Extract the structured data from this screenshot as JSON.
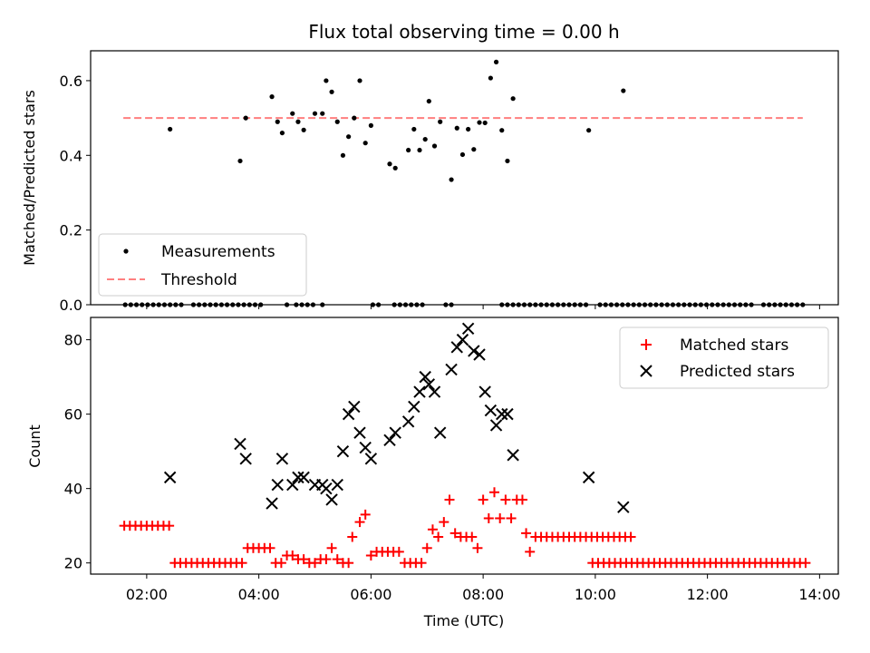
{
  "chart_data": [
    {
      "type": "scatter",
      "title": "Flux total observing time = 0.00 h",
      "xlabel": "",
      "ylabel": "Matched/Predicted stars",
      "xlim": [
        "01:00",
        "14:20"
      ],
      "ylim": [
        0,
        0.68
      ],
      "y_ticks": [
        "0.0",
        "0.2",
        "0.4",
        "0.6"
      ],
      "legend": {
        "placement": "lower-left",
        "entries": [
          "Measurements",
          "Threshold"
        ]
      },
      "threshold": {
        "name": "Threshold",
        "y": 0.5,
        "x_range": [
          "01:35",
          "13:42"
        ],
        "color": "#ff7f7f"
      },
      "series": [
        {
          "name": "Measurements",
          "color": "#000000",
          "points": [
            [
              "02:25",
              0.47
            ],
            [
              "03:40",
              0.385
            ],
            [
              "03:46",
              0.5
            ],
            [
              "04:14",
              0.557
            ],
            [
              "04:20",
              0.49
            ],
            [
              "04:25",
              0.46
            ],
            [
              "04:36",
              0.512
            ],
            [
              "04:42",
              0.49
            ],
            [
              "04:48",
              0.468
            ],
            [
              "05:00",
              0.512
            ],
            [
              "05:08",
              0.512
            ],
            [
              "05:12",
              0.6
            ],
            [
              "05:18",
              0.57
            ],
            [
              "05:24",
              0.49
            ],
            [
              "05:30",
              0.4
            ],
            [
              "05:36",
              0.45
            ],
            [
              "05:42",
              0.5
            ],
            [
              "05:48",
              0.6
            ],
            [
              "05:54",
              0.433
            ],
            [
              "06:00",
              0.48
            ],
            [
              "06:20",
              0.377
            ],
            [
              "06:26",
              0.366
            ],
            [
              "06:40",
              0.414
            ],
            [
              "06:46",
              0.47
            ],
            [
              "06:52",
              0.414
            ],
            [
              "06:58",
              0.443
            ],
            [
              "07:02",
              0.545
            ],
            [
              "07:08",
              0.425
            ],
            [
              "07:14",
              0.49
            ],
            [
              "07:26",
              0.335
            ],
            [
              "07:32",
              0.473
            ],
            [
              "07:38",
              0.402
            ],
            [
              "07:44",
              0.47
            ],
            [
              "07:50",
              0.416
            ],
            [
              "07:56",
              0.488
            ],
            [
              "08:02",
              0.487
            ],
            [
              "08:08",
              0.607
            ],
            [
              "08:14",
              0.65
            ],
            [
              "08:20",
              0.467
            ],
            [
              "08:26",
              0.385
            ],
            [
              "08:32",
              0.552
            ],
            [
              "09:53",
              0.467
            ],
            [
              "10:30",
              0.573
            ]
          ],
          "zero_points_ranges": [
            [
              "01:37",
              "02:40"
            ],
            [
              "02:50",
              "04:05"
            ],
            [
              "04:30",
              "04:30"
            ],
            [
              "04:40",
              "05:02"
            ],
            [
              "05:08",
              "05:10"
            ],
            [
              "06:02",
              "06:10"
            ],
            [
              "06:25",
              "07:00"
            ],
            [
              "07:20",
              "07:30"
            ],
            [
              "08:20",
              "09:55"
            ],
            [
              "10:05",
              "12:50"
            ],
            [
              "13:00",
              "13:42"
            ]
          ]
        }
      ]
    },
    {
      "type": "scatter",
      "title": "",
      "xlabel": "Time (UTC)",
      "ylabel": "Count",
      "xlim": [
        "01:00",
        "14:20"
      ],
      "ylim": [
        17,
        86
      ],
      "y_ticks": [
        "20",
        "40",
        "60",
        "80"
      ],
      "x_ticks": [
        "02:00",
        "04:00",
        "06:00",
        "08:00",
        "10:00",
        "12:00",
        "14:00"
      ],
      "legend": {
        "placement": "top-right",
        "entries": [
          "Matched stars",
          "Predicted stars"
        ]
      },
      "series": [
        {
          "name": "Matched stars",
          "color": "#ff0000",
          "marker": "+",
          "points": [
            [
              "01:36",
              30
            ],
            [
              "01:42",
              30
            ],
            [
              "01:48",
              30
            ],
            [
              "01:54",
              30
            ],
            [
              "02:00",
              30
            ],
            [
              "02:06",
              30
            ],
            [
              "02:12",
              30
            ],
            [
              "02:18",
              30
            ],
            [
              "02:24",
              30
            ],
            [
              "02:30",
              20
            ],
            [
              "02:36",
              20
            ],
            [
              "02:42",
              20
            ],
            [
              "02:48",
              20
            ],
            [
              "02:54",
              20
            ],
            [
              "03:00",
              20
            ],
            [
              "03:06",
              20
            ],
            [
              "03:12",
              20
            ],
            [
              "03:18",
              20
            ],
            [
              "03:24",
              20
            ],
            [
              "03:30",
              20
            ],
            [
              "03:36",
              20
            ],
            [
              "03:42",
              20
            ],
            [
              "03:48",
              24
            ],
            [
              "03:54",
              24
            ],
            [
              "04:00",
              24
            ],
            [
              "04:06",
              24
            ],
            [
              "04:12",
              24
            ],
            [
              "04:18",
              20
            ],
            [
              "04:24",
              20
            ],
            [
              "04:30",
              22
            ],
            [
              "04:36",
              22
            ],
            [
              "04:42",
              21
            ],
            [
              "04:48",
              21
            ],
            [
              "04:54",
              20
            ],
            [
              "05:00",
              20
            ],
            [
              "05:06",
              21
            ],
            [
              "05:12",
              21
            ],
            [
              "05:18",
              24
            ],
            [
              "05:24",
              21
            ],
            [
              "05:30",
              20
            ],
            [
              "05:36",
              20
            ],
            [
              "05:40",
              27
            ],
            [
              "05:48",
              31
            ],
            [
              "05:54",
              33
            ],
            [
              "06:00",
              22
            ],
            [
              "06:06",
              23
            ],
            [
              "06:12",
              23
            ],
            [
              "06:18",
              23
            ],
            [
              "06:24",
              23
            ],
            [
              "06:30",
              23
            ],
            [
              "06:36",
              20
            ],
            [
              "06:42",
              20
            ],
            [
              "06:48",
              20
            ],
            [
              "06:54",
              20
            ],
            [
              "07:00",
              24
            ],
            [
              "07:06",
              29
            ],
            [
              "07:12",
              27
            ],
            [
              "07:18",
              31
            ],
            [
              "07:24",
              37
            ],
            [
              "07:30",
              28
            ],
            [
              "07:36",
              27
            ],
            [
              "07:42",
              27
            ],
            [
              "07:48",
              27
            ],
            [
              "07:54",
              24
            ],
            [
              "08:00",
              37
            ],
            [
              "08:06",
              32
            ],
            [
              "08:12",
              39
            ],
            [
              "08:18",
              32
            ],
            [
              "08:24",
              37
            ],
            [
              "08:30",
              32
            ],
            [
              "08:36",
              37
            ],
            [
              "08:42",
              37
            ],
            [
              "08:46",
              28
            ],
            [
              "08:50",
              23
            ],
            [
              "08:56",
              27
            ],
            [
              "09:02",
              27
            ],
            [
              "09:08",
              27
            ],
            [
              "09:14",
              27
            ],
            [
              "09:20",
              27
            ],
            [
              "09:26",
              27
            ],
            [
              "09:32",
              27
            ],
            [
              "09:38",
              27
            ],
            [
              "09:44",
              27
            ],
            [
              "09:50",
              27
            ],
            [
              "09:56",
              27
            ],
            [
              "10:02",
              27
            ],
            [
              "10:08",
              27
            ],
            [
              "10:14",
              27
            ],
            [
              "10:20",
              27
            ],
            [
              "10:26",
              27
            ],
            [
              "10:32",
              27
            ],
            [
              "10:38",
              27
            ],
            [
              "09:57",
              20
            ],
            [
              "10:03",
              20
            ],
            [
              "10:09",
              20
            ],
            [
              "10:15",
              20
            ],
            [
              "10:21",
              20
            ],
            [
              "10:27",
              20
            ],
            [
              "10:33",
              20
            ],
            [
              "10:39",
              20
            ],
            [
              "10:45",
              20
            ],
            [
              "10:51",
              20
            ],
            [
              "10:57",
              20
            ],
            [
              "11:03",
              20
            ],
            [
              "11:09",
              20
            ],
            [
              "11:15",
              20
            ],
            [
              "11:21",
              20
            ],
            [
              "11:27",
              20
            ],
            [
              "11:33",
              20
            ],
            [
              "11:39",
              20
            ],
            [
              "11:45",
              20
            ],
            [
              "11:51",
              20
            ],
            [
              "11:57",
              20
            ],
            [
              "12:03",
              20
            ],
            [
              "12:09",
              20
            ],
            [
              "12:15",
              20
            ],
            [
              "12:21",
              20
            ],
            [
              "12:27",
              20
            ],
            [
              "12:33",
              20
            ],
            [
              "12:39",
              20
            ],
            [
              "12:45",
              20
            ],
            [
              "12:51",
              20
            ],
            [
              "12:57",
              20
            ],
            [
              "13:03",
              20
            ],
            [
              "13:09",
              20
            ],
            [
              "13:15",
              20
            ],
            [
              "13:21",
              20
            ],
            [
              "13:27",
              20
            ],
            [
              "13:33",
              20
            ],
            [
              "13:39",
              20
            ],
            [
              "13:45",
              20
            ]
          ]
        },
        {
          "name": "Predicted stars",
          "color": "#000000",
          "marker": "x",
          "points": [
            [
              "02:25",
              43
            ],
            [
              "03:40",
              52
            ],
            [
              "03:46",
              48
            ],
            [
              "04:14",
              36
            ],
            [
              "04:20",
              41
            ],
            [
              "04:25",
              48
            ],
            [
              "04:36",
              41
            ],
            [
              "04:42",
              43
            ],
            [
              "04:48",
              43
            ],
            [
              "05:00",
              41
            ],
            [
              "05:08",
              41
            ],
            [
              "05:12",
              40
            ],
            [
              "05:18",
              37
            ],
            [
              "05:24",
              41
            ],
            [
              "05:30",
              50
            ],
            [
              "05:36",
              60
            ],
            [
              "05:42",
              62
            ],
            [
              "05:48",
              55
            ],
            [
              "05:54",
              51
            ],
            [
              "06:00",
              48
            ],
            [
              "06:20",
              53
            ],
            [
              "06:26",
              55
            ],
            [
              "06:40",
              58
            ],
            [
              "06:46",
              62
            ],
            [
              "06:52",
              66
            ],
            [
              "06:58",
              70
            ],
            [
              "07:02",
              68
            ],
            [
              "07:08",
              66
            ],
            [
              "07:14",
              55
            ],
            [
              "07:26",
              72
            ],
            [
              "07:32",
              78
            ],
            [
              "07:38",
              80
            ],
            [
              "07:44",
              83
            ],
            [
              "07:50",
              77
            ],
            [
              "07:56",
              76
            ],
            [
              "08:02",
              66
            ],
            [
              "08:08",
              61
            ],
            [
              "08:14",
              57
            ],
            [
              "08:20",
              60
            ],
            [
              "08:26",
              60
            ],
            [
              "08:32",
              49
            ],
            [
              "09:53",
              43
            ],
            [
              "10:30",
              35
            ]
          ]
        }
      ]
    }
  ]
}
